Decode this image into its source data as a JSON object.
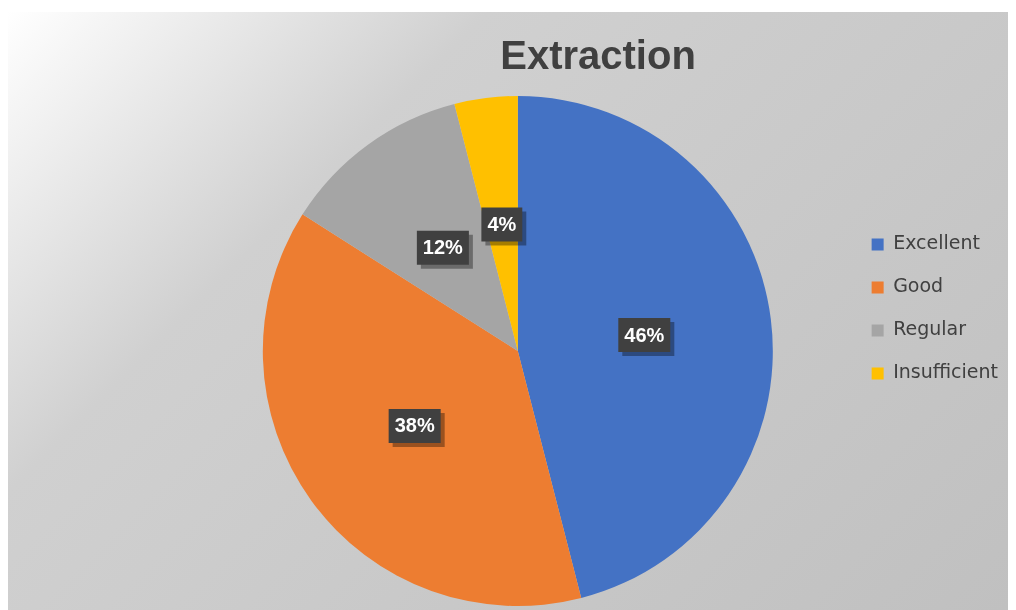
{
  "chart_data": {
    "type": "pie",
    "title": "Extraction",
    "categories": [
      "Excellent",
      "Good",
      "Regular",
      "Insufficient"
    ],
    "values": [
      46,
      38,
      12,
      4
    ],
    "colors": [
      "#4472c4",
      "#ed7d31",
      "#a5a5a5",
      "#ffc000"
    ],
    "value_labels": [
      "46%",
      "38%",
      "12%",
      "4%"
    ],
    "legend": "right"
  }
}
